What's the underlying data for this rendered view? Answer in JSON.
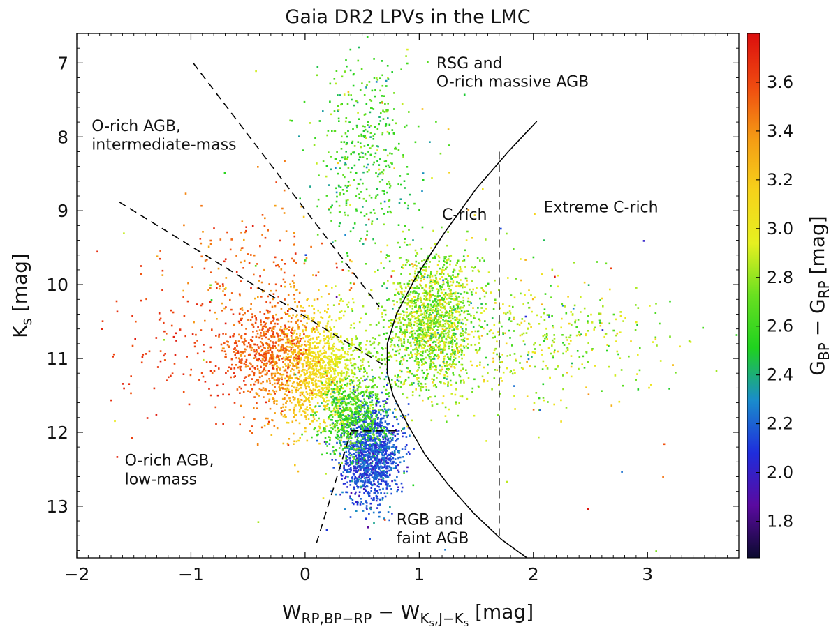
{
  "chart_data": {
    "type": "scatter",
    "title": "Gaia DR2 LPVs in the LMC",
    "xlabel": {
      "main": "W",
      "sub1": "RP,BP−RP",
      "mid": " − W",
      "sub2a": "K",
      "sub2b": "s",
      "sub2c": ",J−K",
      "sub2d": "s",
      "unit": "  [mag]"
    },
    "ylabel": {
      "main": "K",
      "sub": "s",
      "unit": "  [mag]"
    },
    "colorbar_label": {
      "g1": "G",
      "s1": "BP",
      "mid": " − G",
      "s2": "RP",
      "unit": "  [mag]"
    },
    "xlim": [
      -2.0,
      3.8
    ],
    "ylim": [
      13.7,
      6.6
    ],
    "clim": [
      1.65,
      3.8
    ],
    "x_ticks": [
      {
        "value": -2,
        "label": "−2"
      },
      {
        "value": -1,
        "label": "−1"
      },
      {
        "value": 0,
        "label": "0"
      },
      {
        "value": 1,
        "label": "1"
      },
      {
        "value": 2,
        "label": "2"
      },
      {
        "value": 3,
        "label": "3"
      }
    ],
    "y_ticks": [
      {
        "value": 7,
        "label": "7"
      },
      {
        "value": 8,
        "label": "8"
      },
      {
        "value": 9,
        "label": "9"
      },
      {
        "value": 10,
        "label": "10"
      },
      {
        "value": 11,
        "label": "11"
      },
      {
        "value": 12,
        "label": "12"
      },
      {
        "value": 13,
        "label": "13"
      }
    ],
    "colorbar_ticks": [
      {
        "value": 1.8,
        "label": "1.8"
      },
      {
        "value": 2.0,
        "label": "2.0"
      },
      {
        "value": 2.2,
        "label": "2.2"
      },
      {
        "value": 2.4,
        "label": "2.4"
      },
      {
        "value": 2.6,
        "label": "2.6"
      },
      {
        "value": 2.8,
        "label": "2.8"
      },
      {
        "value": 3.0,
        "label": "3.0"
      },
      {
        "value": 3.2,
        "label": "3.2"
      },
      {
        "value": 3.4,
        "label": "3.4"
      },
      {
        "value": 3.6,
        "label": "3.6"
      }
    ],
    "colormap": [
      "#0a0a2e",
      "#5a0aa0",
      "#1f2ddc",
      "#1a8ccc",
      "#1fd21f",
      "#68e020",
      "#e6f020",
      "#f6d21a",
      "#f59b14",
      "#ef4a10",
      "#dc0e0e"
    ],
    "regions": [
      {
        "name": "region-label-rsg",
        "lines": [
          "RSG and",
          "O-rich massive AGB"
        ],
        "x": 1.15,
        "y": 7.07,
        "anchor": "start"
      },
      {
        "name": "region-label-orich-intermediate",
        "lines": [
          "O-rich AGB,",
          "intermediate-mass"
        ],
        "x": -1.87,
        "y": 7.92,
        "anchor": "start"
      },
      {
        "name": "region-label-crich",
        "lines": [
          "C-rich"
        ],
        "x": 1.2,
        "y": 9.12,
        "anchor": "start"
      },
      {
        "name": "region-label-extreme-crich",
        "lines": [
          "Extreme C-rich"
        ],
        "x": 2.09,
        "y": 9.02,
        "anchor": "start"
      },
      {
        "name": "region-label-orich-lowmass",
        "lines": [
          "O-rich AGB,",
          "low-mass"
        ],
        "x": -1.58,
        "y": 12.45,
        "anchor": "start"
      },
      {
        "name": "region-label-rgb",
        "lines": [
          "RGB and",
          "faint AGB"
        ],
        "x": 0.8,
        "y": 13.25,
        "anchor": "start"
      }
    ],
    "boundaries": [
      {
        "name": "boundary-curve-crich",
        "style": "solid",
        "points": [
          [
            2.03,
            7.79
          ],
          [
            1.78,
            8.2
          ],
          [
            1.5,
            8.7
          ],
          [
            1.22,
            9.3
          ],
          [
            0.97,
            9.9
          ],
          [
            0.8,
            10.4
          ],
          [
            0.72,
            10.8
          ],
          [
            0.72,
            11.2
          ],
          [
            0.77,
            11.5
          ],
          [
            0.9,
            11.9
          ],
          [
            1.05,
            12.3
          ],
          [
            1.25,
            12.7
          ],
          [
            1.48,
            13.1
          ],
          [
            1.72,
            13.45
          ],
          [
            1.97,
            13.73
          ]
        ]
      },
      {
        "name": "boundary-dashed-extreme",
        "style": "dashed",
        "points": [
          [
            1.7,
            8.2
          ],
          [
            1.7,
            13.4
          ]
        ]
      },
      {
        "name": "boundary-dashed-upper",
        "style": "dashed",
        "points": [
          [
            -0.98,
            7.0
          ],
          [
            0.65,
            10.3
          ]
        ]
      },
      {
        "name": "boundary-dashed-middle",
        "style": "dashed",
        "points": [
          [
            -1.63,
            8.88
          ],
          [
            0.7,
            11.1
          ]
        ]
      },
      {
        "name": "boundary-dashed-lower",
        "style": "dashed",
        "points": [
          [
            0.1,
            13.5
          ],
          [
            0.4,
            12.0
          ]
        ]
      },
      {
        "name": "boundary-dashed-rgb-top",
        "style": "dashed",
        "points": [
          [
            0.4,
            11.98
          ],
          [
            0.85,
            11.98
          ]
        ]
      }
    ],
    "clusters": [
      {
        "name": "core-orich",
        "n": 1500,
        "x": 0.1,
        "sx": 0.28,
        "y": 11.15,
        "sy": 0.42,
        "cx": 3.1,
        "cmode": "x",
        "slope": -0.7,
        "cbase": 3.1,
        "cnoise": 0.07
      },
      {
        "name": "red-giant-branch",
        "n": 1300,
        "x": 0.57,
        "sx": 0.13,
        "y": 12.3,
        "sy": 0.33,
        "cmode": "const",
        "cbase": 2.15,
        "cnoise": 0.1
      },
      {
        "name": "lowmass-branch",
        "n": 550,
        "x": 0.42,
        "sx": 0.14,
        "y": 11.8,
        "sy": 0.25,
        "cmode": "const",
        "cbase": 2.6,
        "cnoise": 0.12
      },
      {
        "name": "red-clump",
        "n": 380,
        "x": -0.35,
        "sx": 0.2,
        "y": 10.85,
        "sy": 0.25,
        "cmode": "const",
        "cbase": 3.55,
        "cnoise": 0.08
      },
      {
        "name": "upper-red",
        "n": 190,
        "x": -0.4,
        "sx": 0.35,
        "y": 9.9,
        "sy": 0.55,
        "cmode": "const",
        "cbase": 3.5,
        "cnoise": 0.12
      },
      {
        "name": "sparse-red",
        "n": 120,
        "x": -1.0,
        "sx": 0.4,
        "y": 10.8,
        "sy": 0.55,
        "cmode": "const",
        "cbase": 3.65,
        "cnoise": 0.06
      },
      {
        "name": "crich-blob",
        "n": 1500,
        "x": 1.12,
        "sx": 0.2,
        "y": 10.5,
        "sy": 0.45,
        "cmode": "const",
        "cbase": 2.8,
        "cnoise": 0.18
      },
      {
        "name": "crich-tail",
        "n": 420,
        "x": 2.05,
        "sx": 0.55,
        "y": 10.7,
        "sy": 0.45,
        "cmode": "const",
        "cbase": 2.85,
        "cnoise": 0.22
      },
      {
        "name": "rsg-plume",
        "n": 420,
        "x": 0.52,
        "sx": 0.22,
        "y": 8.25,
        "sy": 0.7,
        "cmode": "const",
        "cbase": 2.6,
        "cnoise": 0.14
      },
      {
        "name": "outliers",
        "n": 90,
        "x": 1.0,
        "sx": 1.3,
        "y": 10.5,
        "sy": 1.6,
        "cmode": "const",
        "cbase": 2.9,
        "cnoise": 0.45
      }
    ]
  }
}
